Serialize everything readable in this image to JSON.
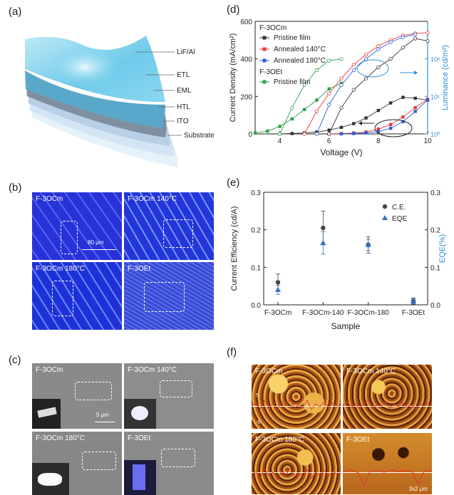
{
  "panels": {
    "a": {
      "label": "(a)",
      "layers": [
        "LiF/Al",
        "ETL",
        "EML",
        "HTL",
        "ITO",
        "Substrate"
      ]
    },
    "b": {
      "label": "(b)",
      "images": [
        "F-3OCm",
        "F-3OCm 140°C",
        "F-3OCm 180°C",
        "F-3OEt"
      ],
      "scale": "80 μm"
    },
    "c": {
      "label": "(c)",
      "images": [
        "F-3OCm",
        "F-3OCm 140°C",
        "F-3OCm 180°C",
        "F-3OEt"
      ],
      "scale": "5 μm"
    },
    "d": {
      "label": "(d)"
    },
    "e": {
      "label": "(e)"
    },
    "f": {
      "label": "(f)",
      "images": [
        "F-3OCm",
        "F-3OCm 140°C",
        "F-3OCm 180°C",
        "F-3OEt"
      ],
      "scale": "3x2 μm",
      "tick_top": "5",
      "tick_bottom": "-5"
    }
  },
  "chart_data": [
    {
      "type": "line",
      "panel": "d",
      "xlabel": "Voltage (V)",
      "ylabel": "Current Density (mA/cm²)",
      "ylabel_right": "Luminance (cd/m²)",
      "xlim": [
        3,
        10
      ],
      "ylim": [
        0,
        600
      ],
      "y2_scale": "log",
      "y2lim": [
        1,
        1000
      ],
      "x_ticks": [
        "4",
        "6",
        "8",
        "10"
      ],
      "y_ticks": [
        "0",
        "200",
        "400",
        "600"
      ],
      "y2_ticks": [
        "10⁰",
        "10¹",
        "10²"
      ],
      "legend": {
        "group1": "F-3OCm",
        "items1": [
          "Pristine film",
          "Annealed 140°C",
          "Annealed 180°C"
        ],
        "group2": "F-3OEt",
        "items2": [
          "Pristine film"
        ]
      },
      "colors": {
        "pristine": "#333333",
        "a140": "#e23b3b",
        "a180": "#2d5fd8",
        "oet": "#2e9e4a",
        "axis_right": "#2f8fd8"
      },
      "series": [
        {
          "name": "F-3OCm Pristine film",
          "quantity": "current",
          "x": [
            4,
            4.5,
            5,
            5.5,
            6,
            6.5,
            7,
            7.5,
            8,
            8.5,
            9,
            9.5,
            10
          ],
          "values": [
            0,
            2,
            5,
            10,
            20,
            35,
            55,
            85,
            125,
            165,
            195,
            190,
            180
          ]
        },
        {
          "name": "F-3OCm Annealed 140°C",
          "quantity": "current",
          "x": [
            6,
            6.5,
            7,
            7.5,
            8,
            8.5,
            9,
            9.5,
            10
          ],
          "values": [
            0,
            2,
            5,
            10,
            25,
            50,
            90,
            140,
            185
          ]
        },
        {
          "name": "F-3OCm Annealed 180°C",
          "quantity": "current",
          "x": [
            6.5,
            7,
            7.5,
            8,
            8.5,
            9,
            9.5,
            10
          ],
          "values": [
            0,
            2,
            5,
            12,
            30,
            65,
            120,
            180
          ]
        },
        {
          "name": "F-3OEt Pristine film",
          "quantity": "current",
          "x": [
            3,
            3.5,
            4,
            4.5,
            5,
            5.5,
            6,
            6.5
          ],
          "values": [
            5,
            15,
            40,
            80,
            130,
            180,
            240,
            270
          ]
        },
        {
          "name": "F-3OCm Pristine film",
          "quantity": "luminance",
          "x": [
            6,
            6.5,
            7,
            7.5,
            8,
            8.5,
            9,
            9.5,
            10
          ],
          "values": [
            1,
            5,
            15,
            30,
            60,
            100,
            200,
            350,
            300
          ]
        },
        {
          "name": "F-3OCm Annealed 140°C",
          "quantity": "luminance",
          "x": [
            5,
            5.5,
            6,
            6.5,
            7,
            7.5,
            8,
            8.5,
            9,
            9.5,
            10
          ],
          "values": [
            1,
            4,
            12,
            30,
            70,
            130,
            220,
            320,
            420,
            480,
            500
          ]
        },
        {
          "name": "F-3OCm Annealed 180°C",
          "quantity": "luminance",
          "x": [
            5.5,
            6,
            6.5,
            7,
            7.5,
            8,
            8.5,
            9,
            9.5
          ],
          "values": [
            1,
            6,
            20,
            50,
            100,
            180,
            280,
            380,
            450
          ]
        },
        {
          "name": "F-3OEt Pristine film",
          "quantity": "luminance",
          "x": [
            4,
            4.5,
            5,
            5.5,
            6,
            6.5
          ],
          "values": [
            1,
            5,
            20,
            50,
            90,
            100
          ]
        }
      ]
    },
    {
      "type": "scatter",
      "panel": "e",
      "xlabel": "Sample",
      "ylabel": "Current Efficiency (cd/A)",
      "ylabel_right": "EQE(%)",
      "categories": [
        "F-3OCm",
        "F-3OCm-140",
        "F-3OCm-180",
        "F-3OEt"
      ],
      "ylim": [
        0,
        0.3
      ],
      "y_ticks": [
        "0.0",
        "0.1",
        "0.2",
        "0.3"
      ],
      "series": [
        {
          "name": "C.E.",
          "color": "#444444",
          "values": [
            0.06,
            0.205,
            0.16,
            0.01
          ],
          "err": [
            0.022,
            0.045,
            0.022,
            0.008
          ]
        },
        {
          "name": "EQE",
          "color": "#2d6fc8",
          "values": [
            0.04,
            0.165,
            0.16,
            0.01
          ],
          "err": [
            0.012,
            0.03,
            0.015,
            0.006
          ]
        }
      ]
    }
  ]
}
